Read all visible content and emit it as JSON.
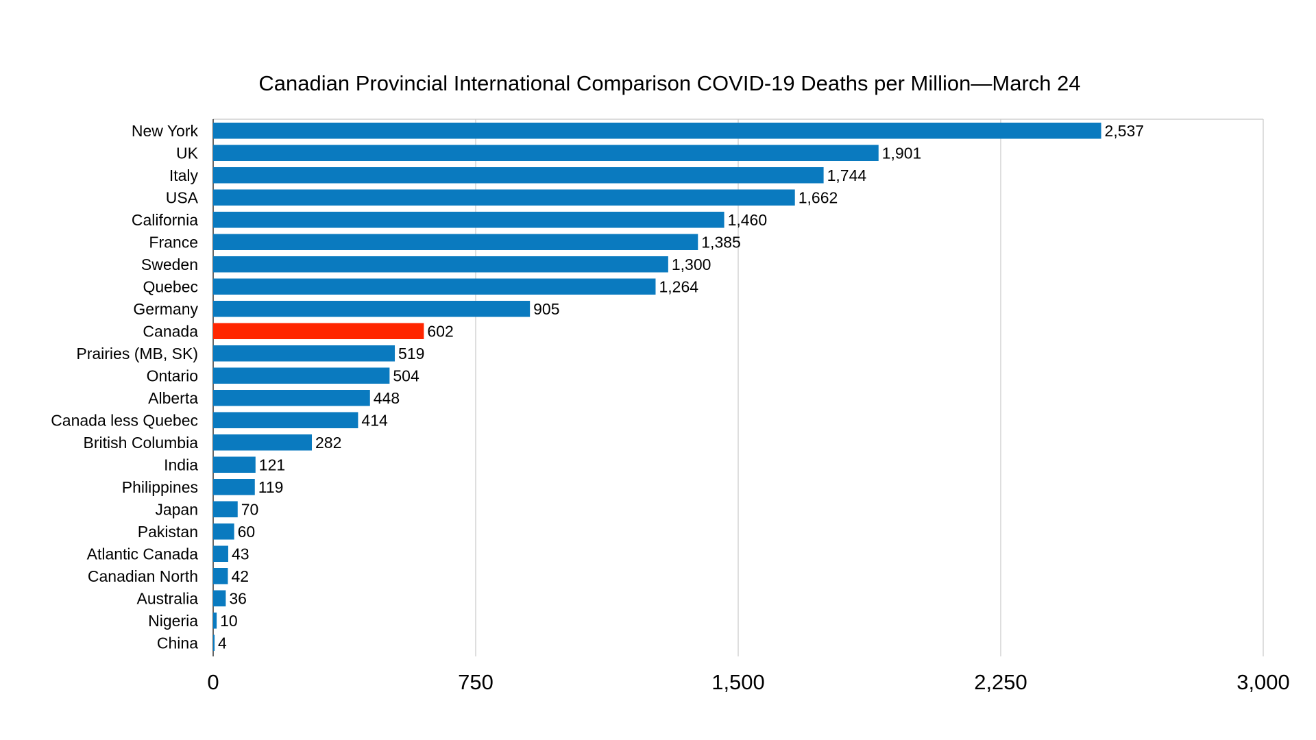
{
  "chart_data": {
    "type": "bar",
    "orientation": "horizontal",
    "title": "Canadian Provincial International Comparison COVID-19 Deaths per Million—March 24",
    "xlabel": "",
    "ylabel": "",
    "xlim": [
      0,
      3000
    ],
    "ticks": [
      0,
      750,
      1500,
      2250,
      3000
    ],
    "tick_labels": [
      "0",
      "750",
      "1,500",
      "2,250",
      "3,000"
    ],
    "grid": true,
    "legend": "none",
    "colors": {
      "default": "#0a7abf",
      "highlight": "#ff2600"
    },
    "highlight_category": "Canada",
    "categories": [
      "New York",
      "UK",
      "Italy",
      "USA",
      "California",
      "France",
      "Sweden",
      "Quebec",
      "Germany",
      "Canada",
      "Prairies (MB, SK)",
      "Ontario",
      "Alberta",
      "Canada less Quebec",
      "British Columbia",
      "India",
      "Philippines",
      "Japan",
      "Pakistan",
      "Atlantic Canada",
      "Canadian North",
      "Australia",
      "Nigeria",
      "China"
    ],
    "values": [
      2537,
      1901,
      1744,
      1662,
      1460,
      1385,
      1300,
      1264,
      905,
      602,
      519,
      504,
      448,
      414,
      282,
      121,
      119,
      70,
      60,
      43,
      42,
      36,
      10,
      4
    ],
    "value_labels": [
      "2,537",
      "1,901",
      "1,744",
      "1,662",
      "1,460",
      "1,385",
      "1,300",
      "1,264",
      "905",
      "602",
      "519",
      "504",
      "448",
      "414",
      "282",
      "121",
      "119",
      "70",
      "60",
      "43",
      "42",
      "36",
      "10",
      "4"
    ]
  }
}
